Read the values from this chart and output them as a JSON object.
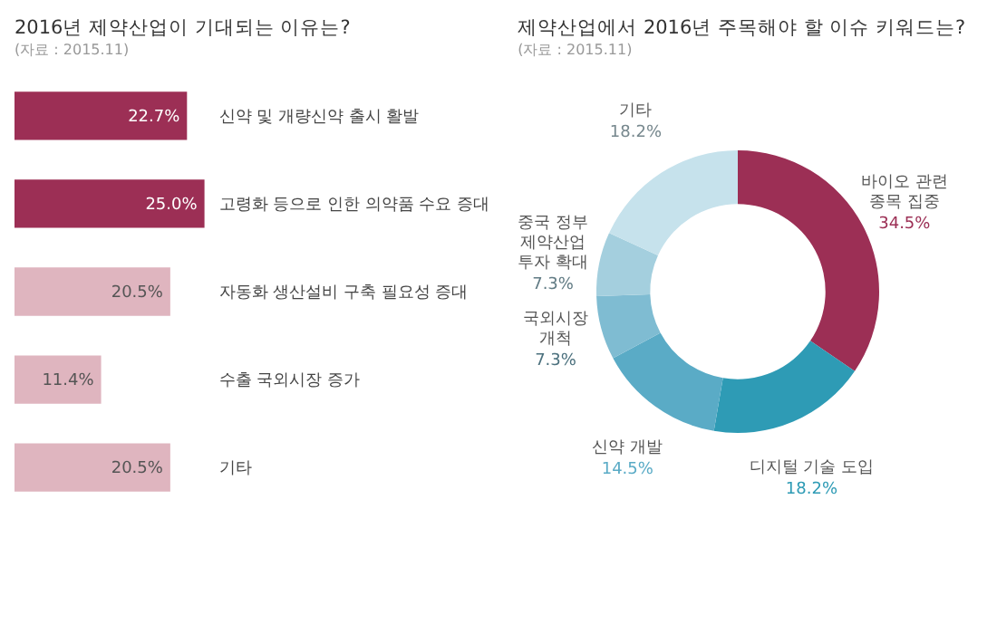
{
  "chart_data": [
    {
      "type": "bar",
      "orientation": "horizontal",
      "title": "2016년 제약산업이 기대되는 이유는?",
      "categories": [
        "신약 및 개량신약 출시 활발",
        "고령화 등으로 인한 의약품 수요 증대",
        "자동화 생산설비 구축 필요성 증대",
        "수출 국외시장 증가",
        "기타"
      ],
      "values": [
        22.7,
        25.0,
        20.5,
        11.4,
        20.5
      ],
      "colors": [
        "#9c2f55",
        "#9c2f55",
        "#dfb5bf",
        "#dfb5bf",
        "#dfb5bf"
      ],
      "value_labels": [
        "22.7%",
        "25.0%",
        "20.5%",
        "11.4%",
        "20.5%"
      ],
      "annotations": [
        "(자료 : 2015.11)"
      ]
    },
    {
      "type": "donut",
      "title": "제약산업에서 2016년 주목해야 할 이슈 키워드는?",
      "categories": [
        "바이오 관련\n종목 집중",
        "디지털 기술 도입",
        "신약 개발",
        "국외시장\n개척",
        "중국 정부\n제약산업\n투자 확대",
        "기타"
      ],
      "values": [
        34.5,
        18.2,
        14.5,
        7.3,
        7.3,
        18.2
      ],
      "colors": [
        "#9c2f55",
        "#2e9bb5",
        "#5aabc6",
        "#7fbcd2",
        "#a4cfde",
        "#c6e2ec"
      ],
      "value_labels": [
        "34.5%",
        "18.2%",
        "14.5%",
        "7.3%",
        "7.3%",
        "18.2%"
      ],
      "annotations": [
        "(자료 : 2015.11)"
      ]
    }
  ]
}
